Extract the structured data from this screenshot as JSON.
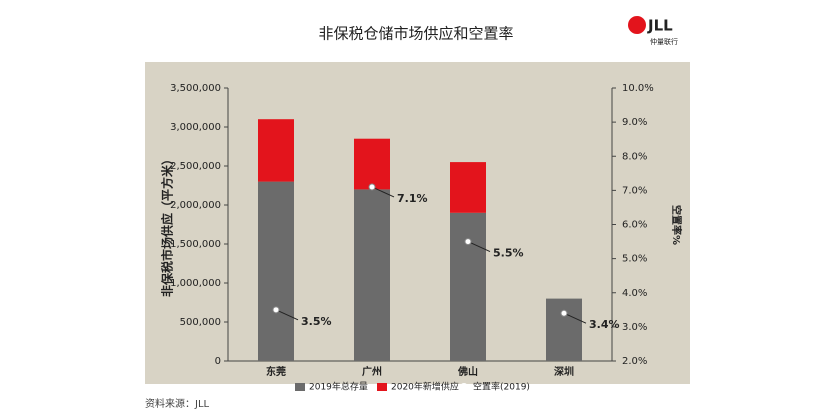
{
  "chart_data": {
    "type": "bar",
    "title": "非保税仓储市场供应和空置率",
    "logo": {
      "brand": "JLL",
      "name": "仲量联行"
    },
    "source": "资料来源：JLL",
    "y_label": "非保税市场供应（平方米）",
    "y2_label": "空置率%",
    "stacked": true,
    "categories": [
      "东莞",
      "广州",
      "佛山",
      "深圳"
    ],
    "series": [
      {
        "name": "2019年总存量",
        "color": "#6b6b6b",
        "values": [
          2300000,
          2200000,
          1900000,
          800000
        ]
      },
      {
        "name": "2020年新增供应",
        "color": "#e3141c",
        "values": [
          800000,
          650000,
          650000,
          0
        ]
      },
      {
        "name": "空置率(2019)",
        "color": "#ffffff",
        "axis": "y2",
        "values": [
          3.5,
          7.1,
          5.5,
          3.4
        ],
        "value_labels": [
          "3.5%",
          "7.1%",
          "5.5%",
          "3.4%"
        ]
      }
    ],
    "ylim": [
      0,
      3500000
    ],
    "yticks": [
      0,
      {
        "value": 500000,
        "label": "500,000"
      },
      {
        "value": 1000000,
        "label": "1,000,000"
      },
      {
        "value": 1500000,
        "label": "1,500,000"
      },
      {
        "value": 2000000,
        "label": "2,000,000"
      },
      {
        "value": 2500000,
        "label": "2,500,000"
      },
      {
        "value": 3000000,
        "label": "3,000,000"
      },
      {
        "value": 3500000,
        "label": "3,500,000"
      }
    ],
    "y2lim": [
      2,
      10
    ],
    "y2ticks": [
      {
        "value": 2,
        "label": "2.0%"
      },
      {
        "value": 3,
        "label": "3.0%"
      },
      {
        "value": 4,
        "label": "4.0%"
      },
      {
        "value": 5,
        "label": "5.0%"
      },
      {
        "value": 6,
        "label": "6.0%"
      },
      {
        "value": 7,
        "label": "7.0%"
      },
      {
        "value": 8,
        "label": "8.0%"
      },
      {
        "value": 9,
        "label": "9.0%"
      },
      {
        "value": 10,
        "label": "10.0%"
      }
    ]
  }
}
